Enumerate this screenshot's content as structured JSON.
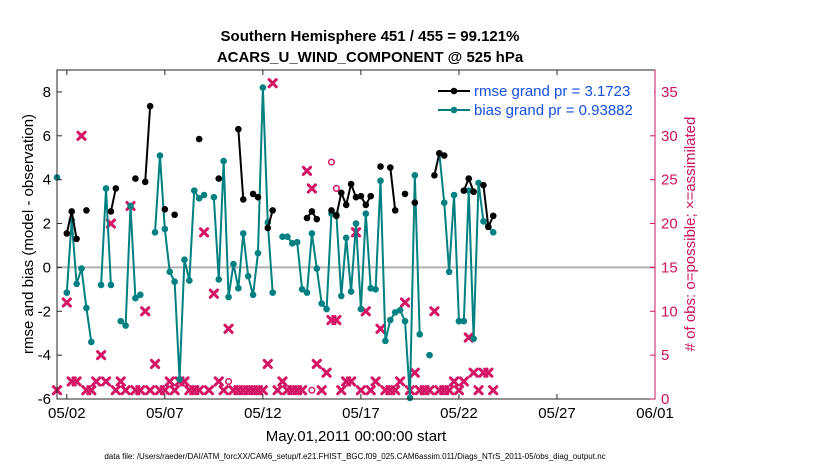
{
  "chart_data": {
    "type": "line",
    "title_line1": "Southern Hemisphere 451 / 455 = 99.121%",
    "title_line2": "ACARS_U_WIND_COMPONENT @ 525 hPa",
    "xlabel": "May.01,2011 00:00:00 start",
    "ylabel_left": "rmse and bias (model - observation)",
    "ylabel_right": "# of obs: o=possible; ×=assimilated",
    "footer": "data file: /Users/raeder/DAI/ATM_forcXX/CAM6_setup/f.e21.FHIST_BGC.f09_025.CAM6assim.011/Diags_NTrS_2011-05/obs_diag_output.nc",
    "xlim": [
      0.5,
      31.0
    ],
    "ylim_left": [
      -6,
      9
    ],
    "ylim_right": [
      0,
      37.5
    ],
    "x_ticks": [
      1,
      6,
      11,
      16,
      21,
      26,
      31
    ],
    "x_tick_labels": [
      "05/02",
      "05/07",
      "05/12",
      "05/17",
      "05/22",
      "05/27",
      "06/01"
    ],
    "y_left_ticks": [
      -6,
      -4,
      -2,
      0,
      2,
      4,
      6,
      8
    ],
    "y_left_tick_labels": [
      "-6",
      "-4",
      "-2",
      "0",
      "2",
      "4",
      "6",
      "8"
    ],
    "y_right_ticks": [
      0,
      5,
      10,
      15,
      20,
      25,
      30,
      35
    ],
    "y_right_tick_labels": [
      "0",
      "5",
      "10",
      "15",
      "20",
      "25",
      "30",
      "35"
    ],
    "zero_line": 0,
    "legend_location": "top-right",
    "colors": {
      "rmse": "#000000",
      "bias": "#008080",
      "obs": "#d41566",
      "axis_right": "#cc1260",
      "legend_text": "#1450e0",
      "zero_line": "#b0b0b0"
    },
    "series": [
      {
        "key": "rmse",
        "name": "rmse grand pr = 3.1723",
        "points": [
          [
            0.5,
            null
          ],
          [
            0.75,
            null
          ],
          [
            1.0,
            1.55
          ],
          [
            1.25,
            2.55
          ],
          [
            1.5,
            1.3
          ],
          [
            1.75,
            null
          ],
          [
            2.0,
            2.6
          ],
          [
            2.25,
            null
          ],
          [
            2.5,
            null
          ],
          [
            2.75,
            null
          ],
          [
            3.0,
            null
          ],
          [
            3.25,
            2.55
          ],
          [
            3.5,
            3.6
          ],
          [
            3.75,
            null
          ],
          [
            4.0,
            null
          ],
          [
            4.25,
            null
          ],
          [
            4.5,
            4.05
          ],
          [
            4.75,
            null
          ],
          [
            5.0,
            3.9
          ],
          [
            5.25,
            7.35
          ],
          [
            5.5,
            null
          ],
          [
            5.75,
            null
          ],
          [
            6.0,
            2.65
          ],
          [
            6.25,
            null
          ],
          [
            6.5,
            2.4
          ],
          [
            6.75,
            null
          ],
          [
            7.0,
            null
          ],
          [
            7.25,
            null
          ],
          [
            7.5,
            null
          ],
          [
            7.75,
            5.85
          ],
          [
            8.0,
            null
          ],
          [
            8.25,
            null
          ],
          [
            8.5,
            null
          ],
          [
            8.75,
            4.05
          ],
          [
            9.0,
            null
          ],
          [
            9.25,
            null
          ],
          [
            9.5,
            null
          ],
          [
            9.75,
            6.3
          ],
          [
            10.0,
            3.1
          ],
          [
            10.25,
            null
          ],
          [
            10.5,
            3.35
          ],
          [
            10.75,
            3.2
          ],
          [
            11.0,
            null
          ],
          [
            11.25,
            1.8
          ],
          [
            11.5,
            2.6
          ],
          [
            11.75,
            null
          ],
          [
            12.0,
            null
          ],
          [
            12.25,
            null
          ],
          [
            12.5,
            null
          ],
          [
            12.75,
            null
          ],
          [
            13.0,
            null
          ],
          [
            13.25,
            2.25
          ],
          [
            13.5,
            2.55
          ],
          [
            13.75,
            2.2
          ],
          [
            14.0,
            null
          ],
          [
            14.25,
            null
          ],
          [
            14.5,
            2.6
          ],
          [
            14.75,
            2.35
          ],
          [
            15.0,
            3.4
          ],
          [
            15.25,
            2.85
          ],
          [
            15.5,
            3.8
          ],
          [
            15.75,
            3.2
          ],
          [
            16.0,
            3.25
          ],
          [
            16.25,
            2.85
          ],
          [
            16.5,
            3.25
          ],
          [
            16.75,
            null
          ],
          [
            17.0,
            4.6
          ],
          [
            17.25,
            null
          ],
          [
            17.5,
            4.55
          ],
          [
            17.75,
            2.6
          ],
          [
            18.0,
            null
          ],
          [
            18.25,
            3.35
          ],
          [
            18.5,
            null
          ],
          [
            18.75,
            2.95
          ],
          [
            19.0,
            null
          ],
          [
            19.25,
            null
          ],
          [
            19.5,
            null
          ],
          [
            19.75,
            4.2
          ],
          [
            20.0,
            5.2
          ],
          [
            20.25,
            5.1
          ],
          [
            20.5,
            null
          ],
          [
            20.75,
            null
          ],
          [
            21.0,
            null
          ],
          [
            21.25,
            3.5
          ],
          [
            21.5,
            4.05
          ],
          [
            21.75,
            3.45
          ],
          [
            22.0,
            null
          ],
          [
            22.25,
            3.75
          ],
          [
            22.5,
            1.85
          ],
          [
            22.75,
            2.35
          ]
        ]
      },
      {
        "key": "bias",
        "name": "bias grand pr = 0.93882",
        "points": [
          [
            0.5,
            4.1
          ],
          [
            0.75,
            null
          ],
          [
            1.0,
            -1.15
          ],
          [
            1.25,
            2.15
          ],
          [
            1.5,
            -0.75
          ],
          [
            1.75,
            -0.05
          ],
          [
            2.0,
            -1.85
          ],
          [
            2.25,
            -3.4
          ],
          [
            2.5,
            null
          ],
          [
            2.75,
            -0.8
          ],
          [
            3.0,
            3.6
          ],
          [
            3.25,
            -0.8
          ],
          [
            3.5,
            null
          ],
          [
            3.75,
            -2.45
          ],
          [
            4.0,
            -2.65
          ],
          [
            4.25,
            2.8
          ],
          [
            4.5,
            -1.4
          ],
          [
            4.75,
            -1.25
          ],
          [
            5.0,
            null
          ],
          [
            5.25,
            null
          ],
          [
            5.5,
            1.6
          ],
          [
            5.75,
            5.1
          ],
          [
            6.0,
            1.75
          ],
          [
            6.25,
            -0.2
          ],
          [
            6.5,
            -0.65
          ],
          [
            6.75,
            -5.1
          ],
          [
            7.0,
            0.35
          ],
          [
            7.25,
            -0.6
          ],
          [
            7.5,
            3.5
          ],
          [
            7.75,
            3.15
          ],
          [
            8.0,
            3.3
          ],
          [
            8.25,
            null
          ],
          [
            8.5,
            3.2
          ],
          [
            8.75,
            -0.55
          ],
          [
            9.0,
            4.85
          ],
          [
            9.25,
            -1.35
          ],
          [
            9.5,
            0.15
          ],
          [
            9.75,
            -0.95
          ],
          [
            10.0,
            1.55
          ],
          [
            10.25,
            -0.4
          ],
          [
            10.5,
            -1.25
          ],
          [
            10.75,
            0.65
          ],
          [
            11.0,
            8.2
          ],
          [
            11.25,
            2.05
          ],
          [
            11.5,
            -1.15
          ],
          [
            11.75,
            null
          ],
          [
            12.0,
            1.4
          ],
          [
            12.25,
            1.4
          ],
          [
            12.5,
            1.1
          ],
          [
            12.75,
            1.15
          ],
          [
            13.0,
            -1.0
          ],
          [
            13.25,
            -1.15
          ],
          [
            13.5,
            1.55
          ],
          [
            13.75,
            -0.05
          ],
          [
            14.0,
            -1.65
          ],
          [
            14.25,
            -1.9
          ],
          [
            14.5,
            2.45
          ],
          [
            14.75,
            2.4
          ],
          [
            15.0,
            -1.3
          ],
          [
            15.25,
            1.35
          ],
          [
            15.5,
            -1.1
          ],
          [
            15.75,
            2.0
          ],
          [
            16.0,
            -1.9
          ],
          [
            16.25,
            2.45
          ],
          [
            16.5,
            -0.95
          ],
          [
            16.75,
            -1.0
          ],
          [
            17.0,
            3.95
          ],
          [
            17.25,
            -3.35
          ],
          [
            17.5,
            -2.4
          ],
          [
            17.75,
            -2.05
          ],
          [
            18.0,
            -1.95
          ],
          [
            18.25,
            -2.45
          ],
          [
            18.5,
            -5.95
          ],
          [
            18.75,
            4.2
          ],
          [
            19.0,
            -3.05
          ],
          [
            19.25,
            null
          ],
          [
            19.5,
            -4.0
          ],
          [
            19.75,
            null
          ],
          [
            20.0,
            5.2
          ],
          [
            20.25,
            2.95
          ],
          [
            20.5,
            -0.2
          ],
          [
            20.75,
            3.3
          ],
          [
            21.0,
            -2.45
          ],
          [
            21.25,
            -2.45
          ],
          [
            21.5,
            3.5
          ],
          [
            21.75,
            -3.25
          ],
          [
            22.0,
            3.85
          ],
          [
            22.25,
            2.1
          ],
          [
            22.5,
            1.85
          ],
          [
            22.75,
            1.6
          ]
        ]
      },
      {
        "key": "obs_assimilated",
        "name": "assimilated",
        "points": [
          [
            0.5,
            1
          ],
          [
            1.0,
            11
          ],
          [
            1.25,
            2
          ],
          [
            1.5,
            2
          ],
          [
            1.75,
            30
          ],
          [
            2.0,
            1
          ],
          [
            2.25,
            1
          ],
          [
            2.5,
            2
          ],
          [
            2.75,
            5
          ],
          [
            3.0,
            2
          ],
          [
            3.25,
            20
          ],
          [
            3.5,
            1
          ],
          [
            3.75,
            2
          ],
          [
            4.0,
            1
          ],
          [
            4.25,
            22
          ],
          [
            4.5,
            1
          ],
          [
            4.75,
            1
          ],
          [
            5.0,
            10
          ],
          [
            5.25,
            1
          ],
          [
            5.5,
            4
          ],
          [
            5.75,
            1
          ],
          [
            6.0,
            1
          ],
          [
            6.25,
            2
          ],
          [
            6.5,
            1
          ],
          [
            6.75,
            2
          ],
          [
            7.0,
            2
          ],
          [
            7.25,
            1
          ],
          [
            7.5,
            1
          ],
          [
            7.75,
            1
          ],
          [
            8.0,
            19
          ],
          [
            8.25,
            1
          ],
          [
            8.5,
            12
          ],
          [
            8.75,
            2
          ],
          [
            9.0,
            1
          ],
          [
            9.25,
            8
          ],
          [
            9.5,
            1
          ],
          [
            9.75,
            1
          ],
          [
            10.0,
            1
          ],
          [
            10.25,
            1
          ],
          [
            10.5,
            1
          ],
          [
            10.75,
            1
          ],
          [
            11.0,
            1
          ],
          [
            11.25,
            4
          ],
          [
            11.5,
            36
          ],
          [
            11.75,
            1
          ],
          [
            12.0,
            2
          ],
          [
            12.25,
            1
          ],
          [
            12.5,
            1
          ],
          [
            12.75,
            1
          ],
          [
            13.0,
            1
          ],
          [
            13.25,
            26
          ],
          [
            13.5,
            24
          ],
          [
            13.75,
            4
          ],
          [
            14.0,
            1
          ],
          [
            14.25,
            3
          ],
          [
            14.5,
            9
          ],
          [
            14.75,
            9
          ],
          [
            15.0,
            1
          ],
          [
            15.25,
            2
          ],
          [
            15.5,
            2
          ],
          [
            15.75,
            19
          ],
          [
            16.0,
            1
          ],
          [
            16.25,
            10
          ],
          [
            16.5,
            1
          ],
          [
            16.75,
            2
          ],
          [
            17.0,
            8
          ],
          [
            17.25,
            1
          ],
          [
            17.5,
            1
          ],
          [
            17.75,
            1
          ],
          [
            18.0,
            2
          ],
          [
            18.25,
            11
          ],
          [
            18.5,
            1
          ],
          [
            18.75,
            3
          ],
          [
            19.0,
            1
          ],
          [
            19.25,
            1
          ],
          [
            19.5,
            1
          ],
          [
            19.75,
            10
          ],
          [
            20.0,
            1
          ],
          [
            20.25,
            1
          ],
          [
            20.5,
            1
          ],
          [
            20.75,
            2
          ],
          [
            21.0,
            1
          ],
          [
            21.25,
            2
          ],
          [
            21.5,
            7
          ],
          [
            21.75,
            3
          ],
          [
            22.0,
            1
          ],
          [
            22.25,
            3
          ],
          [
            22.5,
            3
          ],
          [
            22.75,
            1
          ]
        ]
      },
      {
        "key": "obs_possible",
        "name": "possible",
        "points": [
          [
            9.25,
            2
          ],
          [
            13.5,
            1
          ],
          [
            14.5,
            27
          ],
          [
            14.75,
            24
          ]
        ]
      }
    ]
  }
}
